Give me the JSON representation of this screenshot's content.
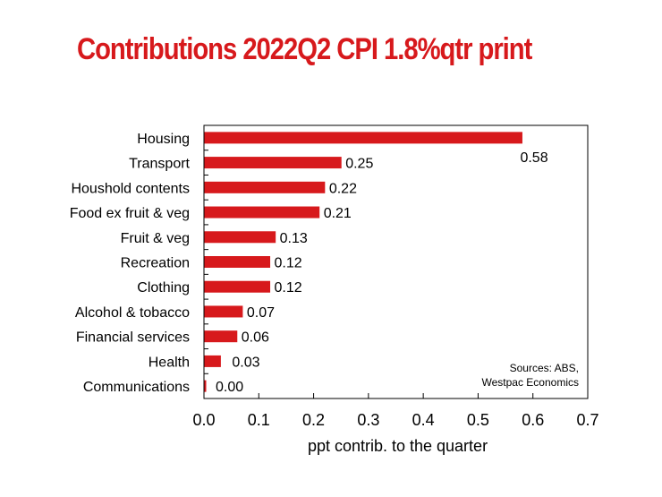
{
  "title": "Contributions 2022Q2 CPI 1.8%qtr print",
  "colors": {
    "bar": "#d7191c",
    "title": "#d7191c"
  },
  "source_note": [
    "Sources: ABS,",
    "Westpac Economics"
  ],
  "chart_data": {
    "type": "bar",
    "orientation": "horizontal",
    "title": "Contributions 2022Q2 CPI 1.8%qtr print",
    "xlabel": "ppt contrib. to the quarter",
    "ylabel": "",
    "xlim": [
      0,
      0.7
    ],
    "xticks": [
      "0.0",
      "0.1",
      "0.2",
      "0.3",
      "0.4",
      "0.5",
      "0.6",
      "0.7"
    ],
    "categories": [
      "Housing",
      "Transport",
      "Houshold contents",
      "Food ex fruit & veg",
      "Fruit & veg",
      "Recreation",
      "Clothing",
      "Alcohol & tobacco",
      "Financial services",
      "Health",
      "Communications"
    ],
    "values": [
      0.58,
      0.25,
      0.22,
      0.21,
      0.13,
      0.12,
      0.12,
      0.07,
      0.06,
      0.03,
      0.0
    ],
    "value_labels": [
      "0.58",
      "0.25",
      "0.22",
      "0.21",
      "0.13",
      "0.12",
      "0.12",
      "0.07",
      "0.06",
      "0.03",
      "0.00"
    ],
    "grid": false
  }
}
